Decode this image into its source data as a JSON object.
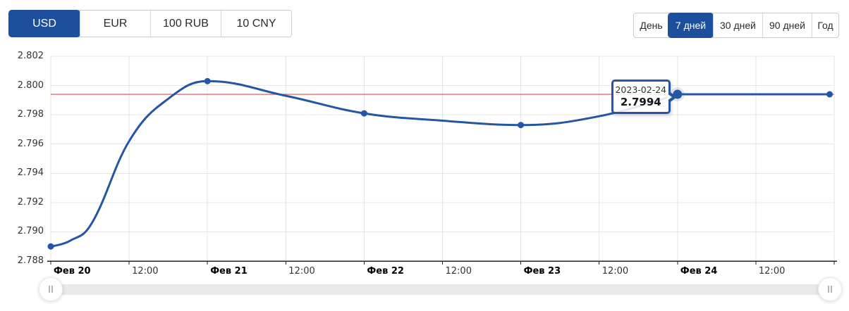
{
  "colors": {
    "accent_blue": "#1d4f9c",
    "line_blue": "#2456a4",
    "current_rate_red": "#dd7070",
    "grid": "#e6e6e6",
    "axis": "#222222",
    "tick_text": "#333333",
    "scroll_track": "#e9e9e9"
  },
  "currency_tabs": {
    "items": [
      {
        "id": "usd",
        "label": "USD",
        "active": true
      },
      {
        "id": "eur",
        "label": "EUR",
        "active": false
      },
      {
        "id": "100-rub",
        "label": "100 RUB",
        "active": false
      },
      {
        "id": "10-cny",
        "label": "10 CNY",
        "active": false
      }
    ]
  },
  "period_tabs": {
    "items": [
      {
        "id": "day",
        "label": "День",
        "active": false
      },
      {
        "id": "7-days",
        "label": "7 дней",
        "active": true
      },
      {
        "id": "30-days",
        "label": "30 дней",
        "active": false
      },
      {
        "id": "90-days",
        "label": "90 дней",
        "active": false
      },
      {
        "id": "year",
        "label": "Год",
        "active": false
      }
    ]
  },
  "tooltip": {
    "date": "2023-02-24",
    "value": "2.7994",
    "anchor_t": 96,
    "anchor_value": 2.7994
  },
  "chart_data": {
    "type": "line",
    "title": "",
    "xlabel": "",
    "ylabel": "",
    "currency": "USD",
    "grid": true,
    "ylim": [
      2.788,
      2.802
    ],
    "y_tick_step": 0.002,
    "y_ticks": [
      "2.802",
      "2.800",
      "2.798",
      "2.796",
      "2.794",
      "2.792",
      "2.790",
      "2.788"
    ],
    "xlim_hours": [
      0,
      120
    ],
    "x_ticks": [
      {
        "t": 0,
        "label": "Фев 20",
        "bold": true
      },
      {
        "t": 12,
        "label": "12:00",
        "bold": false
      },
      {
        "t": 24,
        "label": "Фев 21",
        "bold": true
      },
      {
        "t": 36,
        "label": "12:00",
        "bold": false
      },
      {
        "t": 48,
        "label": "Фев 22",
        "bold": true
      },
      {
        "t": 60,
        "label": "12:00",
        "bold": false
      },
      {
        "t": 72,
        "label": "Фев 23",
        "bold": true
      },
      {
        "t": 84,
        "label": "12:00",
        "bold": false
      },
      {
        "t": 96,
        "label": "Фев 24",
        "bold": true
      },
      {
        "t": 108,
        "label": "12:00",
        "bold": false
      }
    ],
    "current_rate_line": 2.7994,
    "series": [
      {
        "name": "USD",
        "color": "#2456a4",
        "points": [
          {
            "date": "Фев 20",
            "t": 0,
            "value": 2.789
          },
          {
            "date": "Фев 21",
            "t": 24,
            "value": 2.8003
          },
          {
            "date": "Фев 22",
            "t": 48,
            "value": 2.7981
          },
          {
            "date": "Фев 23",
            "t": 72,
            "value": 2.7973
          },
          {
            "date": "Фев 24",
            "t": 96,
            "value": 2.7994,
            "hovered": true
          },
          {
            "t": 119.3,
            "value": 2.7994
          }
        ],
        "spline_shape_anchors": [
          [
            0,
            2.789
          ],
          [
            3,
            2.7894
          ],
          [
            6.3,
            2.7906
          ],
          [
            12,
            2.7962
          ],
          [
            18,
            2.7991
          ],
          [
            24,
            2.8003
          ],
          [
            36,
            2.7993
          ],
          [
            48,
            2.7981
          ],
          [
            60,
            2.7976
          ],
          [
            72,
            2.7973
          ],
          [
            84,
            2.7979
          ],
          [
            96,
            2.7994
          ]
        ],
        "flat_tail": [
          [
            96,
            2.7994
          ],
          [
            119.3,
            2.7994
          ]
        ]
      }
    ]
  }
}
